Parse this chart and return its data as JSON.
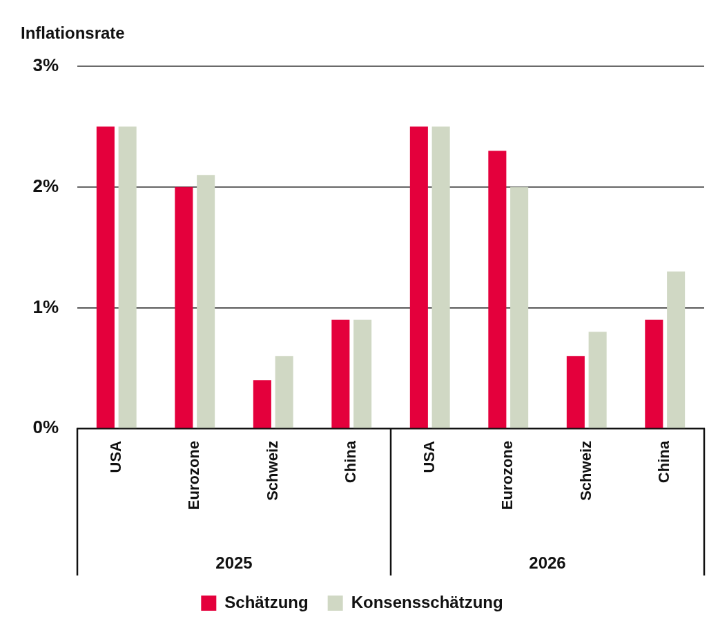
{
  "chart_data": {
    "type": "bar",
    "ylabel": "Inflationsrate",
    "categories": [
      "USA",
      "Eurozone",
      "Schweiz",
      "China",
      "USA",
      "Eurozone",
      "Schweiz",
      "China"
    ],
    "series": [
      {
        "name": "Schätzung",
        "color": "#e4003c",
        "values": [
          2.5,
          2.0,
          0.4,
          0.9,
          2.5,
          2.3,
          0.6,
          0.9
        ]
      },
      {
        "name": "Konsensschätzung",
        "color": "#d0d8c4",
        "values": [
          2.5,
          2.1,
          0.6,
          0.9,
          2.5,
          2.0,
          0.8,
          1.3
        ]
      }
    ],
    "ylim": [
      0,
      3
    ],
    "yticks": [
      {
        "value": 0,
        "label": "0%"
      },
      {
        "value": 1,
        "label": "1%"
      },
      {
        "value": 2,
        "label": "2%"
      },
      {
        "value": 3,
        "label": "3%"
      }
    ],
    "grid": "y",
    "legend": "bottom",
    "annotations": [
      "2025",
      "2026"
    ]
  }
}
